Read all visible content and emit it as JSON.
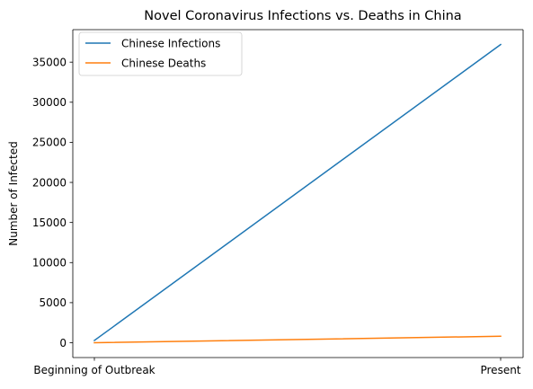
{
  "chart_data": {
    "type": "line",
    "title": "Novel Coronavirus Infections vs. Deaths in China",
    "xlabel": "",
    "ylabel": "Number of Infected",
    "categories": [
      "Beginning of Outbreak",
      "Present"
    ],
    "series": [
      {
        "name": "Chinese Infections",
        "values": [
          282,
          37198
        ],
        "color": "#1f77b4"
      },
      {
        "name": "Chinese Deaths",
        "values": [
          6,
          811
        ],
        "color": "#ff7f0e"
      }
    ],
    "ylim": [
      -1846,
      39054
    ],
    "yticks": [
      0,
      5000,
      10000,
      15000,
      20000,
      25000,
      30000,
      35000
    ],
    "ytick_labels": [
      "0",
      "5000",
      "10000",
      "15000",
      "20000",
      "25000",
      "30000",
      "35000"
    ],
    "legend_position": "top-left",
    "grid": false
  }
}
